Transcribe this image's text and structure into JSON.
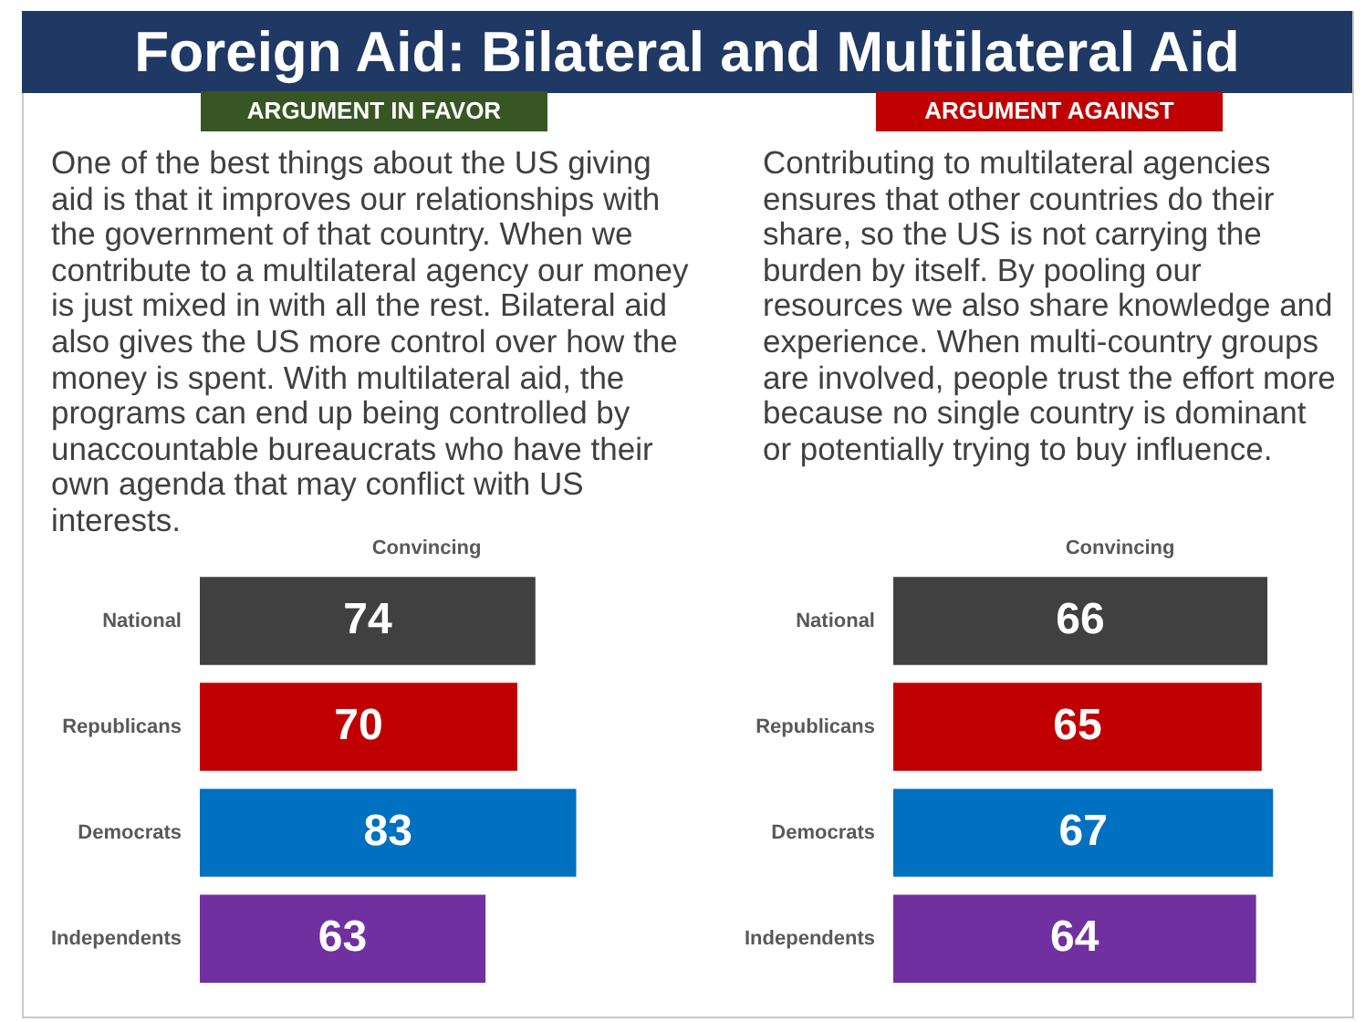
{
  "chart_data": [
    {
      "type": "bar",
      "orientation": "horizontal",
      "title": "Foreign Aid: Bilateral and Multilateral Aid",
      "subtitle": "ARGUMENT IN FAVOR",
      "annotations": [
        "One of the best things about the US giving aid is that it improves our relationships with the government of that country. When we contribute to a multilateral agency our money is just mixed in with all the rest. Bilateral aid also gives the US more control over how the money is spent. With multilateral aid, the programs can end up being controlled by unaccountable bureaucrats who have their own agenda that may conflict with US interests."
      ],
      "xlabel": "Convincing",
      "categories": [
        "National",
        "Republicans",
        "Democrats",
        "Independents"
      ],
      "values": [
        74,
        70,
        83,
        63
      ],
      "colors": [
        "#404040",
        "#c00000",
        "#0070c0",
        "#7030a0"
      ],
      "tick_labels": "y",
      "data_labels": true,
      "grid": false,
      "legend": false
    },
    {
      "type": "bar",
      "orientation": "horizontal",
      "subtitle": "ARGUMENT AGAINST",
      "annotations": [
        "Contributing to multilateral agencies ensures that other countries do their share, so the US is not carrying the burden by itself. By pooling our resources we also share knowledge and experience. When multi-country groups are involved, people trust the effort more because no single country is dominant or potentially trying to buy influence."
      ],
      "xlabel": "Convincing",
      "categories": [
        "National",
        "Republicans",
        "Democrats",
        "Independents"
      ],
      "values": [
        66,
        65,
        67,
        64
      ],
      "colors": [
        "#404040",
        "#c00000",
        "#0070c0",
        "#7030a0"
      ],
      "tick_labels": "y",
      "data_labels": true,
      "grid": false,
      "legend": false
    }
  ]
}
